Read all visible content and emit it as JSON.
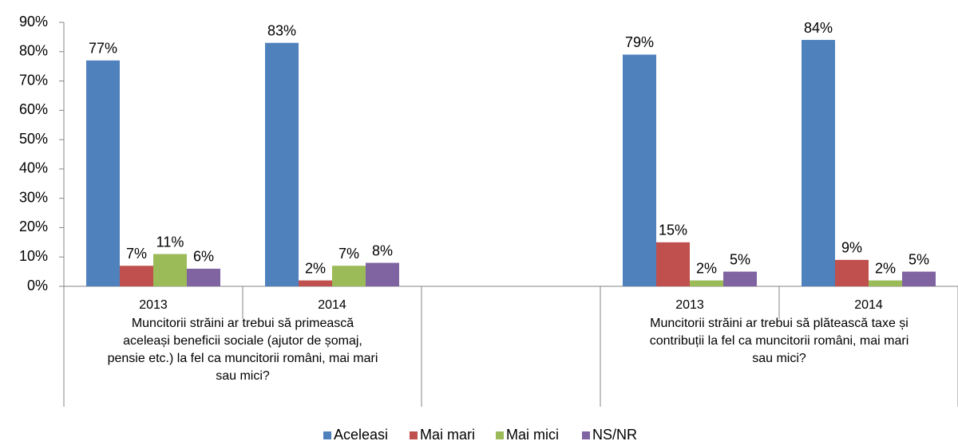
{
  "chart_data": {
    "type": "bar",
    "categories": [
      "2013",
      "2014",
      null,
      "2013",
      "2014"
    ],
    "group_labels": [
      [
        "Muncitorii străini ar trebui să primească",
        "aceleași beneficii sociale (ajutor de șomaj,",
        "pensie etc.) la fel ca muncitorii români, mai mari",
        "sau mici?"
      ],
      [
        "Muncitorii străini ar trebui să plătească taxe și",
        "contribuții la fel ca muncitorii români, mai mari",
        "sau mici?"
      ]
    ],
    "series": [
      {
        "name": "Aceleasi",
        "color": "#4f81bd",
        "values": [
          77,
          83,
          null,
          79,
          84
        ],
        "value_labels": [
          "77%",
          "83%",
          null,
          "79%",
          "84%"
        ]
      },
      {
        "name": "Mai mari",
        "color": "#c0504d",
        "values": [
          7,
          2,
          null,
          15,
          9
        ],
        "value_labels": [
          "7%",
          "2%",
          null,
          "15%",
          "9%"
        ]
      },
      {
        "name": "Mai mici",
        "color": "#9bbb59",
        "values": [
          11,
          7,
          null,
          2,
          2
        ],
        "value_labels": [
          "11%",
          "7%",
          null,
          "2%",
          "2%"
        ]
      },
      {
        "name": "NS/NR",
        "color": "#8064a2",
        "values": [
          6,
          8,
          null,
          5,
          5
        ],
        "value_labels": [
          "6%",
          "8%",
          null,
          "5%",
          "5%"
        ]
      }
    ],
    "ylim": [
      0,
      90
    ],
    "yticks": [
      {
        "value": 0,
        "label": "0%"
      },
      {
        "value": 10,
        "label": "10%"
      },
      {
        "value": 20,
        "label": "20%"
      },
      {
        "value": 30,
        "label": "30%"
      },
      {
        "value": 40,
        "label": "40%"
      },
      {
        "value": 50,
        "label": "50%"
      },
      {
        "value": 60,
        "label": "60%"
      },
      {
        "value": 70,
        "label": "70%"
      },
      {
        "value": 80,
        "label": "80%"
      },
      {
        "value": 90,
        "label": "90%"
      }
    ],
    "grid": false,
    "legend": "bottom"
  }
}
